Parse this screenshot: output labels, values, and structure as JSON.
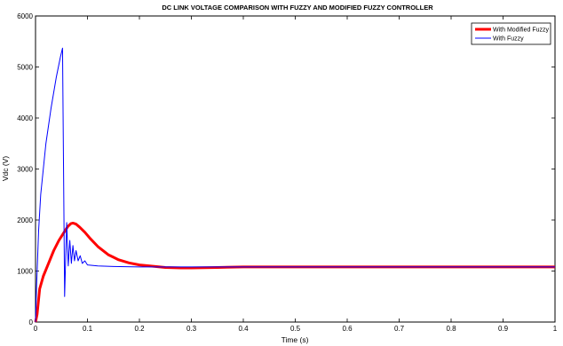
{
  "chart_data": {
    "type": "line",
    "title": "DC LINK VOLTAGE COMPARISON WITH FUZZY AND MODIFIED FUZZY CONTROLLER",
    "xlabel": "Time (s)",
    "ylabel": "Vdc (V)",
    "xlim": [
      0,
      1
    ],
    "ylim": [
      0,
      6000
    ],
    "x_ticks": [
      "0",
      "0.1",
      "0.2",
      "0.3",
      "0.4",
      "0.5",
      "0.6",
      "0.7",
      "0.8",
      "0.9",
      "1"
    ],
    "y_ticks": [
      "0",
      "1000",
      "2000",
      "3000",
      "4000",
      "5000",
      "6000"
    ],
    "grid": false,
    "legend_position": "top-right",
    "series": [
      {
        "name": "With Modified Fuzzy",
        "color": "#ff0000",
        "x": [
          0,
          0.003,
          0.008,
          0.015,
          0.025,
          0.035,
          0.045,
          0.055,
          0.062,
          0.068,
          0.072,
          0.078,
          0.085,
          0.095,
          0.105,
          0.12,
          0.14,
          0.16,
          0.18,
          0.2,
          0.22,
          0.25,
          0.28,
          0.3,
          0.35,
          0.4,
          0.45,
          0.5,
          0.55,
          0.6,
          0.7,
          0.8,
          0.9,
          1.0
        ],
        "y": [
          0,
          150,
          650,
          900,
          1150,
          1400,
          1600,
          1760,
          1870,
          1930,
          1940,
          1920,
          1860,
          1760,
          1640,
          1480,
          1320,
          1220,
          1160,
          1120,
          1100,
          1070,
          1060,
          1060,
          1070,
          1080,
          1080,
          1080,
          1080,
          1080,
          1080,
          1080,
          1080,
          1080
        ]
      },
      {
        "name": "With Fuzzy",
        "color": "#0000ff",
        "x": [
          0,
          0.002,
          0.006,
          0.01,
          0.015,
          0.02,
          0.03,
          0.04,
          0.048,
          0.052,
          0.056,
          0.06,
          0.063,
          0.066,
          0.069,
          0.072,
          0.075,
          0.078,
          0.082,
          0.086,
          0.09,
          0.095,
          0.1,
          0.12,
          0.15,
          0.2,
          0.3,
          0.4,
          0.5,
          0.6,
          0.7,
          0.8,
          0.9,
          1.0
        ],
        "y": [
          0,
          700,
          1800,
          2500,
          3000,
          3500,
          4200,
          4800,
          5200,
          5370,
          500,
          1950,
          1100,
          1600,
          1150,
          1500,
          1200,
          1400,
          1200,
          1300,
          1150,
          1200,
          1120,
          1100,
          1090,
          1080,
          1080,
          1080,
          1080,
          1080,
          1080,
          1080,
          1080,
          1080
        ]
      }
    ]
  }
}
